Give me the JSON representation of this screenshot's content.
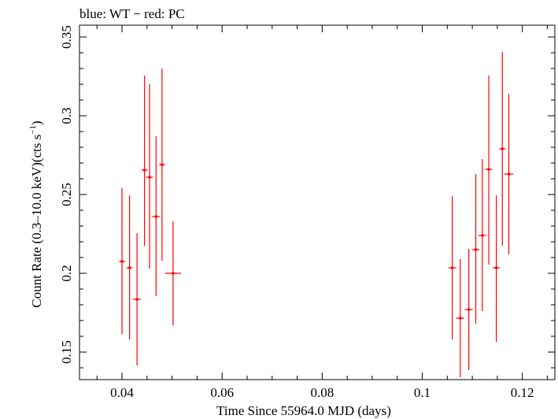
{
  "chart_data": {
    "type": "scatter",
    "title": "blue: WT − red: PC",
    "xlabel": "Time Since 55964.0 MJD (days)",
    "ylabel_main": "Count Rate (0.3–10.0 keV)(cts s",
    "ylabel_sup": "−1",
    "ylabel_close": ")",
    "xlim": [
      0.0315,
      0.1265
    ],
    "ylim": [
      0.1325,
      0.3575
    ],
    "x_ticks": [
      0.04,
      0.06,
      0.08,
      0.1,
      0.12
    ],
    "x_tick_labels": [
      "0.04",
      "0.06",
      "0.08",
      "0.1",
      "0.12"
    ],
    "y_ticks": [
      0.15,
      0.2,
      0.25,
      0.3,
      0.35
    ],
    "y_tick_labels": [
      "0.15",
      "0.2",
      "0.25",
      "0.3",
      "0.35"
    ],
    "grid": false,
    "series": [
      {
        "name": "PC",
        "color": "#ff0000",
        "points": [
          {
            "x": 0.04,
            "xerr": 0.0006,
            "y": 0.2075,
            "yerr_low": 0.046,
            "yerr_high": 0.0465
          },
          {
            "x": 0.0415,
            "xerr": 0.0006,
            "y": 0.2035,
            "yerr_low": 0.0455,
            "yerr_high": 0.046
          },
          {
            "x": 0.043,
            "xerr": 0.0008,
            "y": 0.1835,
            "yerr_low": 0.042,
            "yerr_high": 0.042
          },
          {
            "x": 0.0445,
            "xerr": 0.0006,
            "y": 0.2655,
            "yerr_low": 0.048,
            "yerr_high": 0.06
          },
          {
            "x": 0.0455,
            "xerr": 0.0007,
            "y": 0.261,
            "yerr_low": 0.058,
            "yerr_high": 0.059
          },
          {
            "x": 0.0468,
            "xerr": 0.0008,
            "y": 0.236,
            "yerr_low": 0.0505,
            "yerr_high": 0.051
          },
          {
            "x": 0.048,
            "xerr": 0.0006,
            "y": 0.269,
            "yerr_low": 0.061,
            "yerr_high": 0.061
          },
          {
            "x": 0.0502,
            "xerr": 0.0016,
            "y": 0.2,
            "yerr_low": 0.033,
            "yerr_high": 0.033
          },
          {
            "x": 0.106,
            "xerr": 0.0008,
            "y": 0.2035,
            "yerr_low": 0.0455,
            "yerr_high": 0.0455
          },
          {
            "x": 0.1076,
            "xerr": 0.0008,
            "y": 0.1715,
            "yerr_low": 0.0375,
            "yerr_high": 0.0375
          },
          {
            "x": 0.1093,
            "xerr": 0.0008,
            "y": 0.177,
            "yerr_low": 0.0385,
            "yerr_high": 0.0385
          },
          {
            "x": 0.1107,
            "xerr": 0.0007,
            "y": 0.215,
            "yerr_low": 0.047,
            "yerr_high": 0.048
          },
          {
            "x": 0.112,
            "xerr": 0.0008,
            "y": 0.224,
            "yerr_low": 0.048,
            "yerr_high": 0.0485
          },
          {
            "x": 0.1133,
            "xerr": 0.0007,
            "y": 0.266,
            "yerr_low": 0.0605,
            "yerr_high": 0.0595
          },
          {
            "x": 0.1148,
            "xerr": 0.0007,
            "y": 0.2035,
            "yerr_low": 0.047,
            "yerr_high": 0.046
          },
          {
            "x": 0.116,
            "xerr": 0.0006,
            "y": 0.279,
            "yerr_low": 0.0615,
            "yerr_high": 0.0615
          },
          {
            "x": 0.1173,
            "xerr": 0.0009,
            "y": 0.263,
            "yerr_low": 0.051,
            "yerr_high": 0.051
          }
        ]
      }
    ]
  }
}
